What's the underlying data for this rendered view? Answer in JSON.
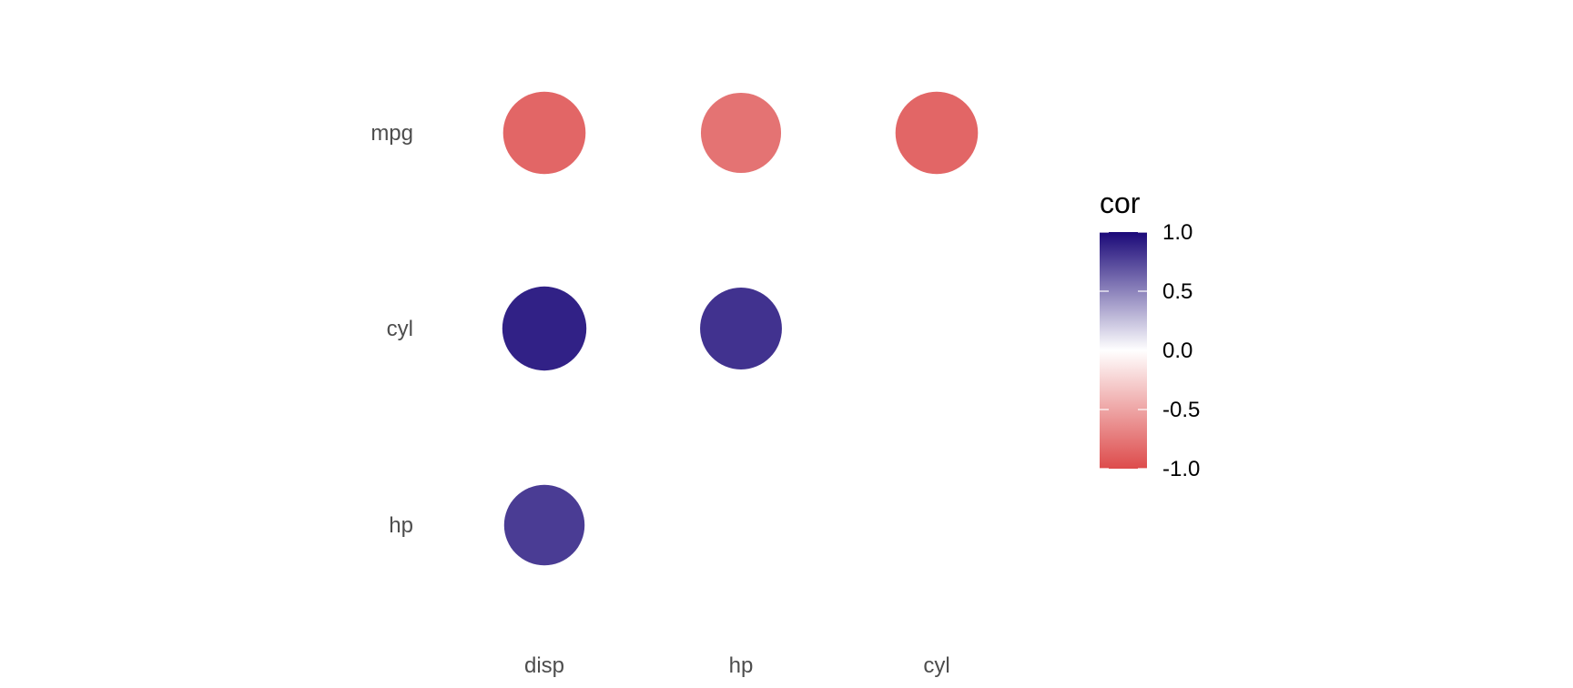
{
  "chart_data": {
    "type": "scatter",
    "x_categories": [
      "disp",
      "hp",
      "cyl"
    ],
    "y_categories": [
      "mpg",
      "cyl",
      "hp"
    ],
    "points": [
      {
        "x": "disp",
        "y": "mpg",
        "cor": -0.85
      },
      {
        "x": "hp",
        "y": "mpg",
        "cor": -0.78
      },
      {
        "x": "cyl",
        "y": "mpg",
        "cor": -0.85
      },
      {
        "x": "disp",
        "y": "cyl",
        "cor": 0.9
      },
      {
        "x": "hp",
        "y": "cyl",
        "cor": 0.83
      },
      {
        "x": "disp",
        "y": "hp",
        "cor": 0.79
      }
    ],
    "legend": {
      "title": "cor",
      "ticks": [
        1.0,
        0.5,
        0.0,
        -0.5,
        -1.0
      ],
      "tick_labels": [
        "1.0",
        "0.5",
        "0.0",
        "-0.5",
        "-1.0"
      ],
      "range": [
        -1,
        1
      ],
      "placement": "right"
    },
    "colors": {
      "high": "#1A0878",
      "mid": "#FFFFFF",
      "low": "#DD4B4B"
    },
    "grid": false
  }
}
